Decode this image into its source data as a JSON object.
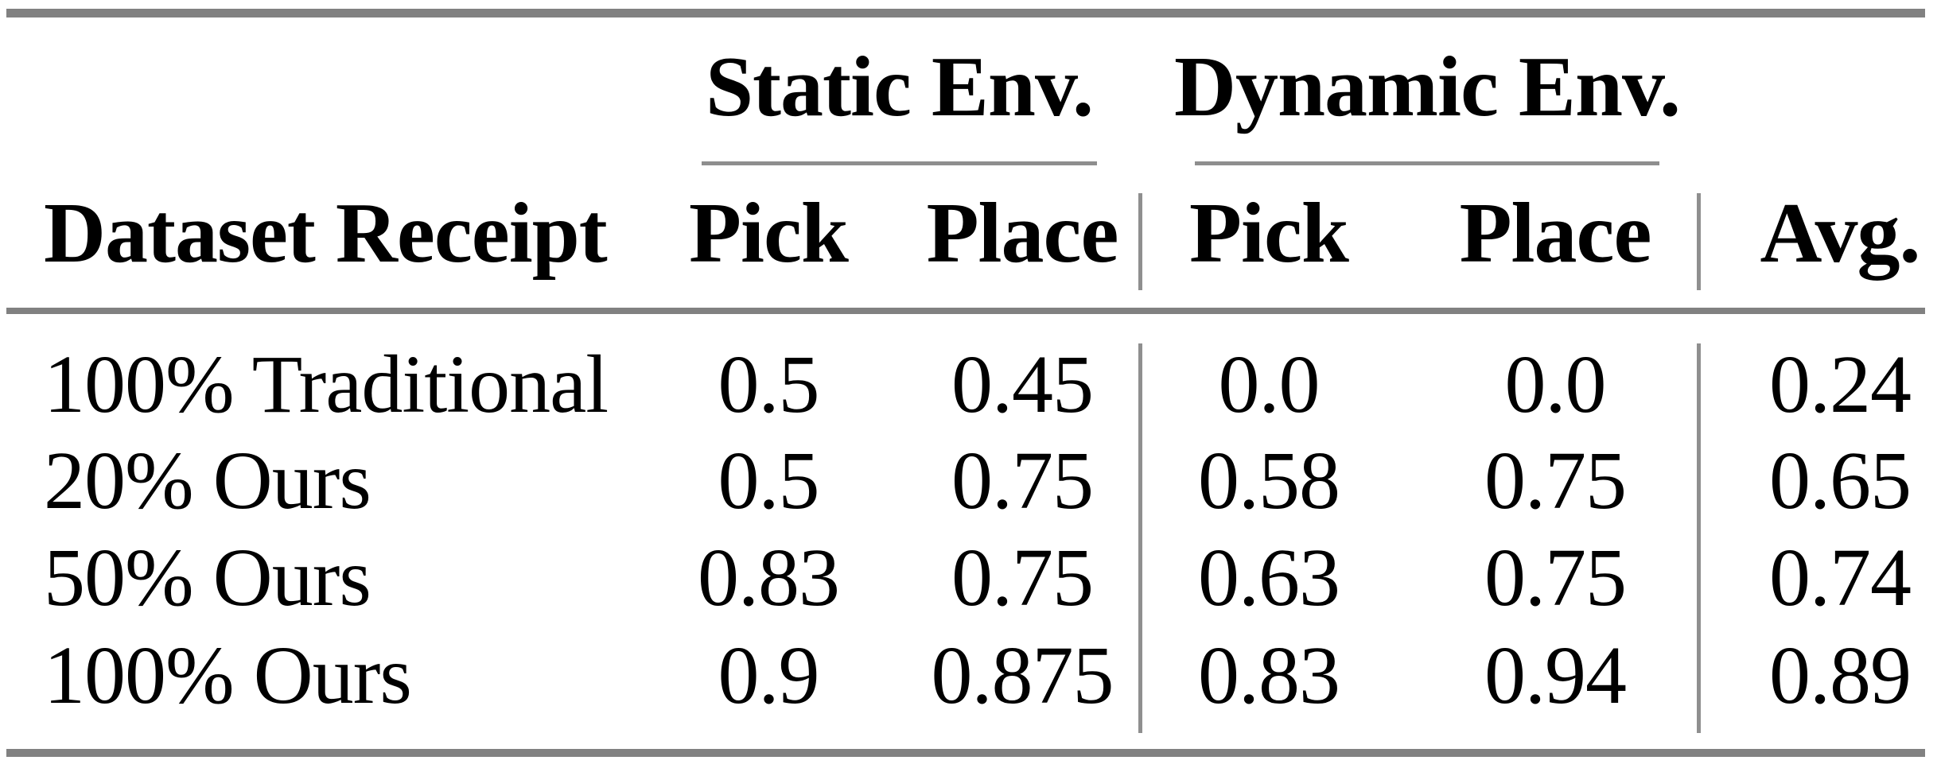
{
  "table": {
    "col_groups": {
      "static_env": "Static Env.",
      "dynamic_env": "Dynamic Env."
    },
    "header": {
      "row_label": "Dataset Receipt",
      "static_pick": "Pick",
      "static_place": "Place",
      "dynamic_pick": "Pick",
      "dynamic_place": "Place",
      "avg": "Avg."
    },
    "rows": [
      {
        "label": "100% Traditional",
        "static_pick": "0.5",
        "static_place": "0.45",
        "dynamic_pick": "0.0",
        "dynamic_place": "0.0",
        "avg": "0.24"
      },
      {
        "label": "20% Ours",
        "static_pick": "0.5",
        "static_place": "0.75",
        "dynamic_pick": "0.58",
        "dynamic_place": "0.75",
        "avg": "0.65"
      },
      {
        "label": "50% Ours",
        "static_pick": "0.83",
        "static_place": "0.75",
        "dynamic_pick": "0.63",
        "dynamic_place": "0.75",
        "avg": "0.74"
      },
      {
        "label": "100% Ours",
        "static_pick": "0.9",
        "static_place": "0.875",
        "dynamic_pick": "0.83",
        "dynamic_place": "0.94",
        "avg": "0.89"
      }
    ],
    "colors": {
      "rule": "#818181",
      "thin_rule": "#8e8e8e",
      "text": "#000000",
      "background": "#ffffff"
    }
  }
}
